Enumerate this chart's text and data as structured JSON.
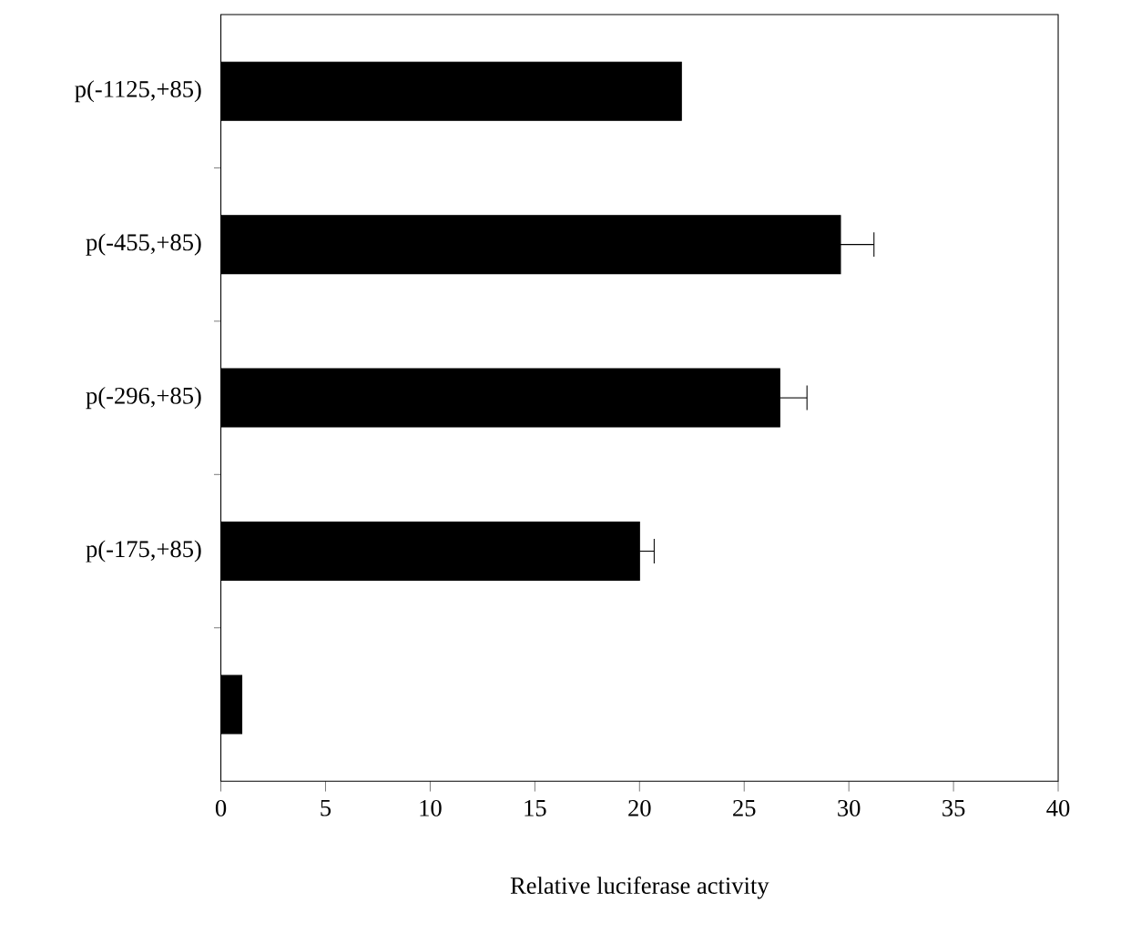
{
  "chart_data": {
    "type": "bar",
    "orientation": "horizontal",
    "xlabel": "Relative luciferase activity",
    "categories": [
      "p(-1125,+85)",
      "p(-455,+85)",
      "p(-296,+85)",
      "p(-175,+85)",
      null
    ],
    "values": [
      22.0,
      29.6,
      26.7,
      20.0,
      1.0
    ],
    "errors": [
      null,
      [
        29.6,
        31.2
      ],
      [
        26.7,
        28.0
      ],
      [
        20.0,
        20.7
      ],
      null
    ],
    "color": "#000000",
    "xlim": [
      0,
      40
    ],
    "xticks": [
      0,
      5,
      10,
      15,
      20,
      25,
      30,
      35,
      40
    ],
    "grid": false
  }
}
